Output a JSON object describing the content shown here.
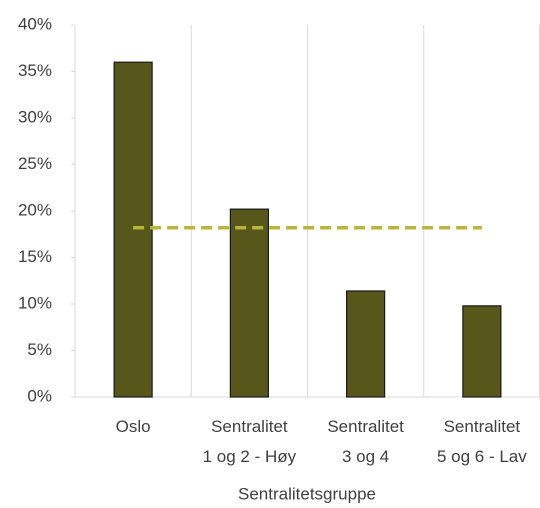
{
  "chart_data": {
    "type": "bar",
    "x_label": "Sentralitetsgruppe",
    "categories": [
      [
        "Oslo"
      ],
      [
        "Sentralitet",
        "1 og 2 - Høy"
      ],
      [
        "Sentralitet",
        "3 og 4"
      ],
      [
        "Sentralitet",
        "5 og 6 - Lav"
      ]
    ],
    "values": [
      36,
      20.2,
      11.4,
      9.8
    ],
    "color": "#57561b",
    "reference_line": {
      "value": 18.2,
      "color": "#b7b63c",
      "dashed": true
    },
    "ylim": [
      0,
      40
    ],
    "yticks": [
      {
        "value": 0,
        "label": "0%"
      },
      {
        "value": 5,
        "label": "5%"
      },
      {
        "value": 10,
        "label": "10%"
      },
      {
        "value": 15,
        "label": "15%"
      },
      {
        "value": 20,
        "label": "20%"
      },
      {
        "value": 25,
        "label": "25%"
      },
      {
        "value": 30,
        "label": "30%"
      },
      {
        "value": 35,
        "label": "35%"
      },
      {
        "value": 40,
        "label": "40%"
      }
    ]
  }
}
